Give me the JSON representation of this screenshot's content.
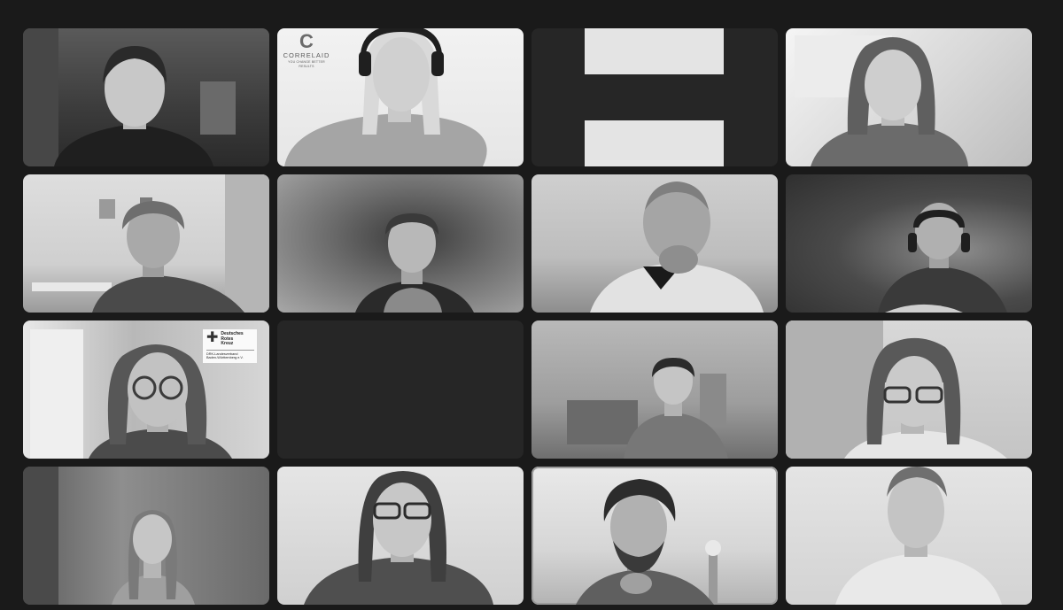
{
  "meeting": {
    "tiles": [
      {
        "id": 1,
        "kind": "video"
      },
      {
        "id": 2,
        "kind": "video",
        "logo": {
          "icon": "correlaid-logo-icon",
          "mark": "C",
          "name": "CORRELAID",
          "tagline": "YOU CHANGE BETTER RESULTS"
        }
      },
      {
        "id": 3,
        "kind": "camera-off-placeholder"
      },
      {
        "id": 4,
        "kind": "video"
      },
      {
        "id": 5,
        "kind": "video"
      },
      {
        "id": 6,
        "kind": "video"
      },
      {
        "id": 7,
        "kind": "video"
      },
      {
        "id": 8,
        "kind": "video"
      },
      {
        "id": 9,
        "kind": "video",
        "badge": {
          "icon": "red-cross-icon",
          "mark": "✚",
          "name_line1": "Deutsches",
          "name_line2": "Rotes",
          "name_line3": "Kreuz",
          "sub_line1": "DRK-Landesverband",
          "sub_line2": "Baden-Württemberg e.V."
        }
      },
      {
        "id": 10,
        "kind": "empty"
      },
      {
        "id": 11,
        "kind": "video"
      },
      {
        "id": 12,
        "kind": "video"
      },
      {
        "id": 13,
        "kind": "video"
      },
      {
        "id": 14,
        "kind": "video"
      },
      {
        "id": 15,
        "kind": "video",
        "active_speaker": true
      },
      {
        "id": 16,
        "kind": "video"
      }
    ]
  },
  "colors": {
    "background": "#1a1a1a",
    "empty_tile": "#262626",
    "placeholder_bar": "#e4e4e4",
    "active_outline": "#9c9c9c"
  }
}
